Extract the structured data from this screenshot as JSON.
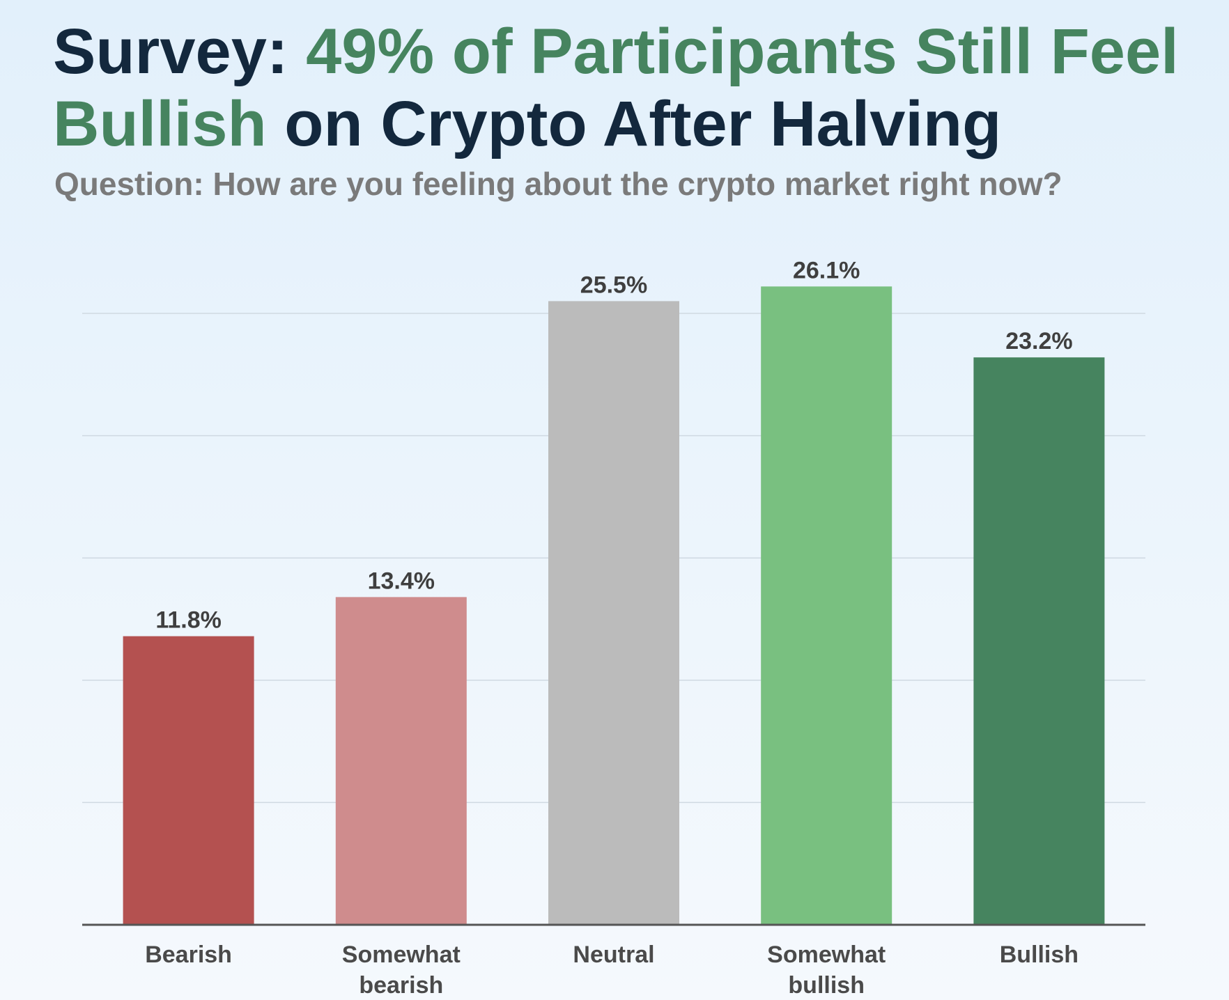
{
  "title": {
    "part1": "Survey: ",
    "part2": "49% of Participants Still Feel Bullish",
    "part3": " on Crypto After Halving"
  },
  "subtitle": "Question: How are you feeling about the crypto market right now?",
  "colors": {
    "bearish": "#b45150",
    "somewhat_bearish": "#cf8c8d",
    "neutral": "#bbbbbb",
    "somewhat_bullish": "#79c080",
    "bullish": "#46845f",
    "title_dark": "#13283d",
    "title_green": "#46845f"
  },
  "chart_data": {
    "type": "bar",
    "categories": [
      [
        "Bearish"
      ],
      [
        "Somewhat",
        "bearish"
      ],
      [
        "Neutral"
      ],
      [
        "Somewhat",
        "bullish"
      ],
      [
        "Bullish"
      ]
    ],
    "values": [
      11.8,
      13.4,
      25.5,
      26.1,
      23.2
    ],
    "value_labels": [
      "11.8%",
      "13.4%",
      "25.5%",
      "26.1%",
      "23.2%"
    ],
    "bar_colors": [
      "#b45150",
      "#cf8c8d",
      "#bbbbbb",
      "#79c080",
      "#46845f"
    ],
    "ylim": [
      0,
      25
    ],
    "gridlines": [
      5,
      10,
      15,
      20,
      25
    ],
    "grid": true,
    "xlabel": "",
    "ylabel": ""
  }
}
